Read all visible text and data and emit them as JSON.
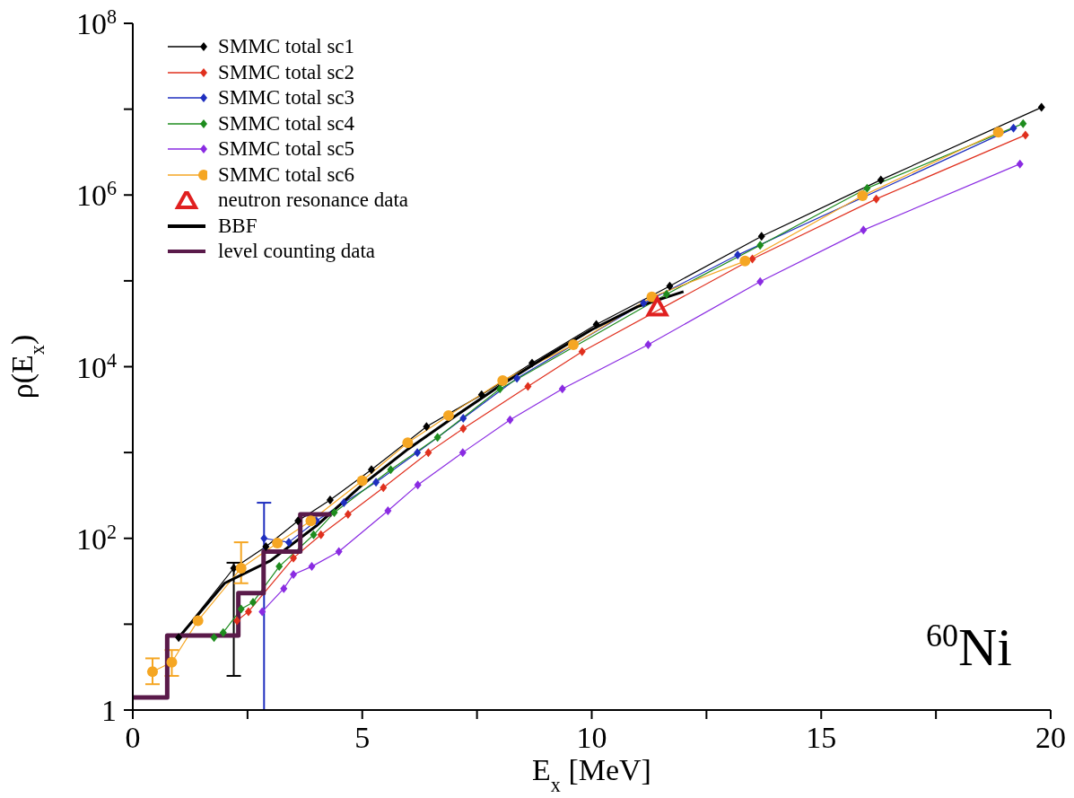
{
  "chart_data": {
    "type": "line",
    "xlabel": "E$_{x}$ [MeV]",
    "ylabel": "ρ(E$_{x}$)",
    "annotations": [
      "$^{60}$Ni"
    ],
    "log": "y",
    "grid": false,
    "legend": "top left",
    "xlim": [
      0,
      20
    ],
    "xticks": [
      0,
      {
        "value": 2.5,
        "label": null
      },
      5,
      {
        "value": 7.5,
        "label": null
      },
      10,
      {
        "value": 12.5,
        "label": null
      },
      15,
      {
        "value": 17.5,
        "label": null
      },
      20
    ],
    "ylim": [
      1,
      100000000
    ],
    "yticks": [
      1,
      {
        "value": 10,
        "label": null
      },
      {
        "value": 100,
        "label": "10$^{2}$"
      },
      {
        "value": 1000,
        "label": null
      },
      {
        "value": 10000,
        "label": "10$^{4}$"
      },
      {
        "value": 100000,
        "label": null
      },
      {
        "value": 1000000,
        "label": "10$^{6}$"
      },
      {
        "value": 10000000,
        "label": null
      },
      {
        "value": 100000000,
        "label": "10$^{8}$"
      }
    ],
    "series": [
      {
        "name": "SMMC total sc1",
        "color": "#000000",
        "marker": "diamond",
        "x": [
          1.0,
          2.2,
          2.9,
          3.6,
          4.3,
          5.2,
          6.4,
          7.6,
          8.7,
          10.1,
          11.7,
          13.7,
          16.3,
          19.8
        ],
        "values": [
          7,
          45,
          80,
          160,
          280,
          630,
          2000,
          4700,
          11000,
          31000,
          87000,
          330000,
          1500000,
          10500000
        ],
        "errors": [
          null,
          [
            2.5,
            52
          ],
          null,
          null,
          null,
          null,
          null,
          null,
          null,
          null,
          null,
          null,
          null,
          null
        ]
      },
      {
        "name": "SMMC total sc2",
        "color": "#e0301e",
        "marker": "diamond",
        "x": [
          2.27,
          2.52,
          3.5,
          4.1,
          4.69,
          5.46,
          6.44,
          7.2,
          8.61,
          9.79,
          13.5,
          16.2,
          19.45
        ],
        "values": [
          11,
          14,
          59,
          110,
          190,
          390,
          1000,
          1900,
          5900,
          15000,
          180000,
          900000,
          5000000
        ]
      },
      {
        "name": "SMMC total sc3",
        "color": "#1f2fbf",
        "marker": "diamond",
        "x": [
          2.86,
          3.4,
          4.0,
          4.6,
          5.3,
          6.2,
          7.2,
          8.37,
          9.5,
          11.13,
          13.18,
          16.0,
          19.19
        ],
        "values": [
          100,
          90,
          160,
          260,
          450,
          1000,
          2500,
          7300,
          null,
          55000,
          200000,
          null,
          6000000
        ],
        "errors": [
          [
            1,
            260
          ],
          null,
          null,
          null,
          null,
          null,
          null,
          null,
          null,
          null,
          null,
          null,
          null
        ]
      },
      {
        "name": "SMMC total sc4",
        "color": "#1e8c1e",
        "marker": "diamond",
        "x": [
          1.77,
          1.97,
          2.36,
          2.62,
          3.19,
          3.94,
          4.39,
          5.62,
          6.64,
          8.0,
          9.5,
          11.63,
          13.67,
          16.0,
          19.4
        ],
        "values": [
          7,
          8,
          15,
          18,
          47,
          110,
          200,
          630,
          1500,
          5500,
          null,
          70000,
          260000,
          1200000,
          6800000
        ]
      },
      {
        "name": "SMMC total sc5",
        "color": "#8a2be2",
        "marker": "diamond",
        "x": [
          2.82,
          3.29,
          3.5,
          3.9,
          4.49,
          5.56,
          6.21,
          7.19,
          8.22,
          9.36,
          11.23,
          13.67,
          15.92,
          19.33
        ],
        "values": [
          14,
          26,
          38,
          47,
          70,
          210,
          420,
          1000,
          2400,
          5500,
          18000,
          98000,
          390000,
          2300000
        ]
      },
      {
        "name": "SMMC total sc6",
        "color": "#f5a623",
        "marker": "circle",
        "x": [
          0.43,
          0.85,
          1.42,
          2.36,
          3.15,
          3.88,
          5.0,
          5.99,
          6.88,
          8.06,
          9.6,
          11.31,
          13.34,
          15.9,
          18.86
        ],
        "values": [
          2.8,
          3.6,
          11,
          45,
          88,
          160,
          470,
          1300,
          2700,
          6900,
          18000,
          65000,
          170000,
          980000,
          5400000
        ],
        "errors": [
          [
            2,
            4
          ],
          [
            2.5,
            5
          ],
          null,
          [
            30,
            90
          ],
          null,
          null,
          null,
          null,
          null,
          null,
          null,
          null,
          null,
          null,
          null
        ]
      },
      {
        "name": "neutron resonance data",
        "type": "scatter",
        "color": "#e02020",
        "marker": "triangle",
        "x": [
          11.43
        ],
        "values": [
          49000
        ]
      },
      {
        "name": "BBF",
        "color": "#000000",
        "marker": "none",
        "x": [
          1,
          2,
          3,
          4,
          5,
          6,
          7,
          8,
          9,
          10,
          11,
          12
        ],
        "values": [
          7,
          30,
          55,
          140,
          420,
          1100,
          2600,
          6000,
          13000,
          27000,
          50000,
          75000
        ]
      },
      {
        "name": "level counting data",
        "type": "step",
        "color": "#5a1a4a",
        "marker": "none",
        "x": [
          0,
          0.75,
          2.3,
          2.85,
          3.65,
          4.33
        ],
        "values": [
          1.4,
          7.4,
          23,
          70,
          190,
          190
        ]
      }
    ]
  }
}
